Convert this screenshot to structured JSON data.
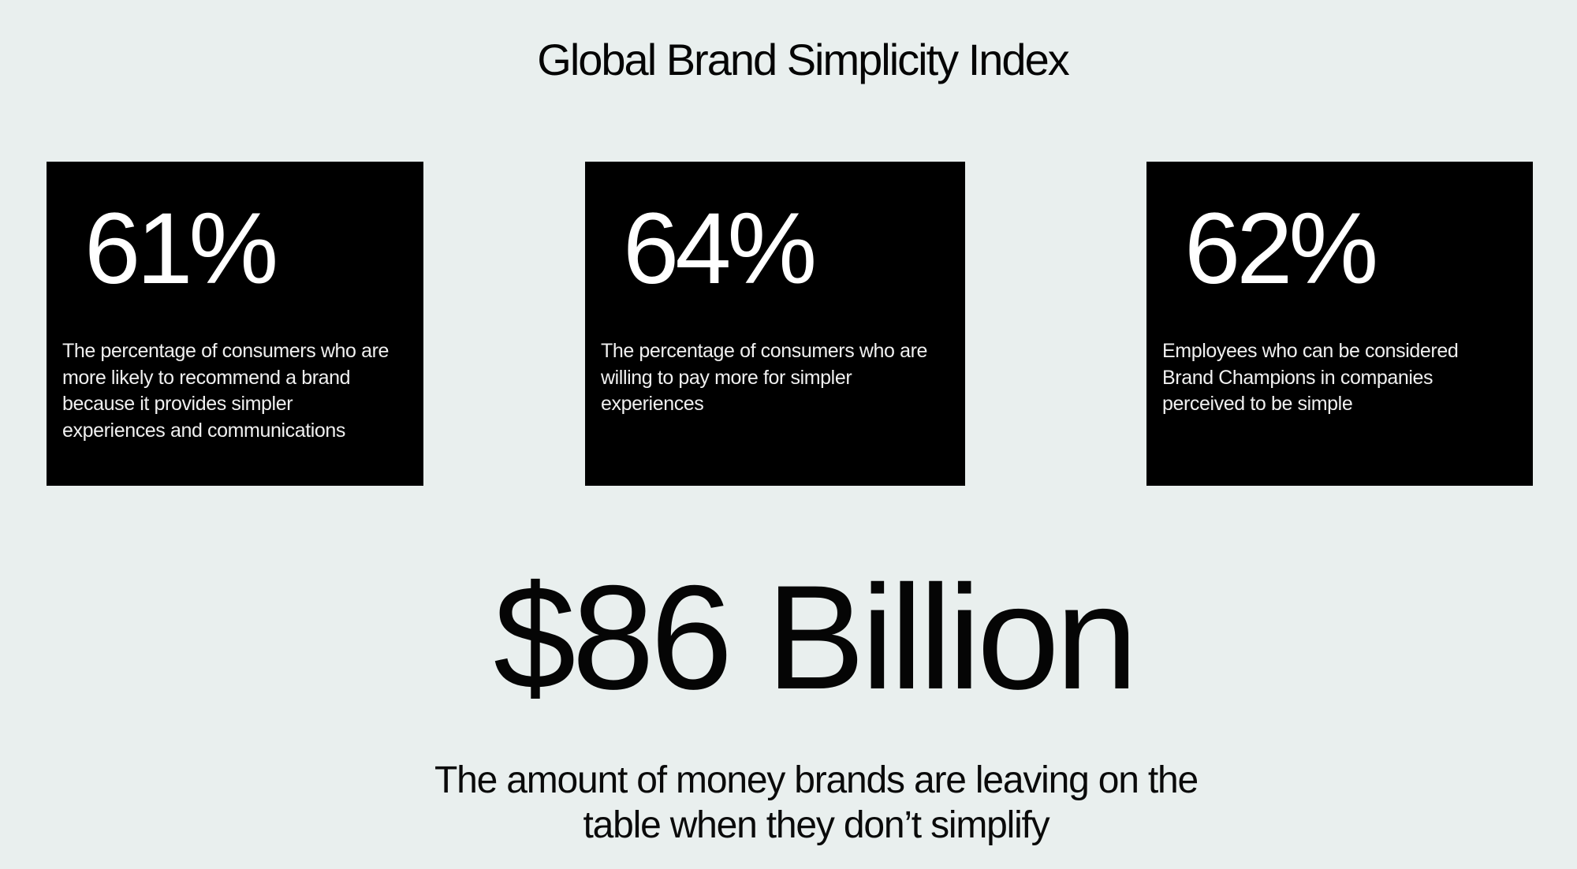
{
  "page": {
    "title": "Global Brand Simplicity Index"
  },
  "colors": {
    "background": "#e9efee",
    "card_background": "#000000",
    "card_number_text": "#ffffff",
    "card_description_text": "#f0f0f0",
    "heading_text": "#000000"
  },
  "stats": [
    {
      "value": "61%",
      "description": [
        "The percentage of consumers who are",
        "more likely to recommend a brand",
        "because it provides simpler",
        "experiences and communications"
      ]
    },
    {
      "value": "64%",
      "description": [
        "The percentage of consumers who are",
        "willing to pay more for simpler",
        "experiences"
      ]
    },
    {
      "value": "62%",
      "description": [
        "Employees who can be considered",
        "Brand Champions in companies",
        "perceived to be simple"
      ]
    }
  ],
  "highlight": {
    "value": "$86 Billion",
    "caption": [
      "The amount of money brands are leaving on the",
      "table when they don’t simplify"
    ]
  }
}
